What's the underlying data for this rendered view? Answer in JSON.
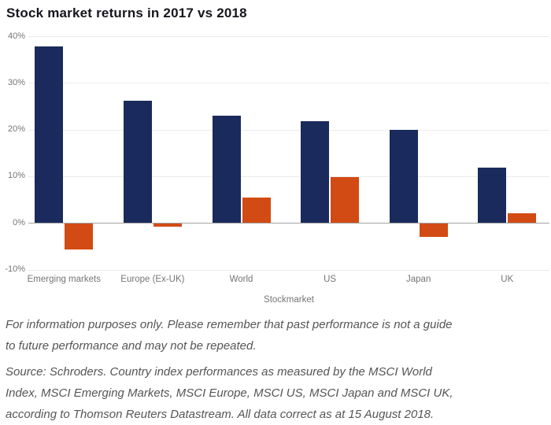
{
  "chart_data": {
    "type": "bar",
    "title": "Stock market returns in 2017 vs 2018",
    "categories": [
      "Emerging markets",
      "Europe (Ex-UK)",
      "World",
      "US",
      "Japan",
      "UK"
    ],
    "series": [
      {
        "name": "2017",
        "color": "#1a2a5c",
        "values": [
          37.8,
          26.2,
          23.0,
          21.8,
          20.0,
          11.8
        ]
      },
      {
        "name": "2018",
        "color": "#d24b14",
        "values": [
          -5.5,
          -0.7,
          5.5,
          9.8,
          -2.8,
          2.0
        ]
      }
    ],
    "xlabel": "Stockmarket",
    "ylabel": "",
    "ylim": [
      -10,
      40
    ],
    "yticks": [
      40,
      30,
      20,
      10,
      0,
      -10
    ],
    "ytick_format": "{v}%",
    "grid": true,
    "legend": "none"
  },
  "colors": {
    "series_2017": "#1a2a5c",
    "series_2018": "#d24b14",
    "gridline": "#ebebeb",
    "zero_line": "#a3a3a3",
    "tick_label": "#757575",
    "title_text": "#15151d",
    "footer_text": "#555555",
    "background": "#ffffff"
  },
  "footer": {
    "disclaimer": "For information purposes only. Please remember that past performance is not a guide to future performance and may not be repeated.",
    "source": "Source: Schroders. Country index performances as measured by the MSCI World Index, MSCI Emerging Markets, MSCI Europe, MSCI US, MSCI Japan and MSCI UK, according to Thomson Reuters Datastream. All data correct as at 15 August 2018."
  }
}
